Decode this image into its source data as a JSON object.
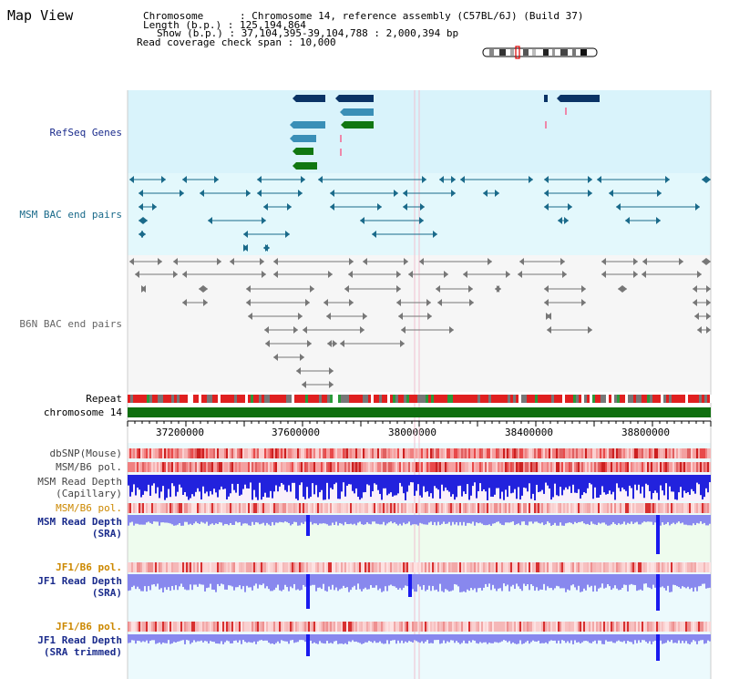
{
  "app": {
    "title": "Map View"
  },
  "info": {
    "chromosome_label": "Chromosome",
    "chromosome_value": "Chromosome 14, reference assembly (C57BL/6J) (Build 37)",
    "length_label": "Length (b.p.)",
    "length_value": "125,194,864",
    "show_label": "Show (b.p.)",
    "show_value": "37,104,395-39,104,788 : 2,000,394 bp",
    "read_span_label": "Read coverage check span",
    "read_span_value": "10,000",
    "sep": " : "
  },
  "tracks": {
    "refseq": "RefSeq Genes",
    "msm_bac": "MSM BAC end pairs",
    "b6n_bac": "B6N BAC end pairs",
    "repeat": "Repeat",
    "chromosome": "chromosome 14",
    "dbsnp": "dbSNP(Mouse)",
    "msm_b6_pol": "MSM/B6 pol.",
    "msm_read_cap_1": "MSM Read Depth",
    "msm_read_cap_2": "(Capillary)",
    "msm_b6_pol2": "MSM/B6 pol.",
    "msm_read_sra_1": "MSM Read Depth",
    "msm_read_sra_2": "(SRA)",
    "jf1_b6_pol": "JF1/B6 pol.",
    "jf1_read_sra_1": "JF1 Read Depth",
    "jf1_read_sra_2": "(SRA)",
    "jf1_b6_pol2": "JF1/B6 pol.",
    "jf1_read_trim_1": "JF1 Read Depth",
    "jf1_read_trim_2": "(SRA trimmed)"
  },
  "axis": {
    "ticks": [
      "37200000",
      "37600000",
      "38000000",
      "38400000",
      "38800000"
    ],
    "start": 37104395,
    "end": 39104788
  },
  "colors": {
    "refseq_bg": "#d9f3fb",
    "msm_bac_bg": "#e3f8fc",
    "b6n_bg": "#f6f6f6",
    "gene_dark": "#0a3366",
    "gene_mid": "#3a8fb7",
    "gene_green": "#117711",
    "msm_bac_line": "#1a6a8a",
    "b6n_line": "#777777",
    "chrom_bar": "#0f6f0f",
    "label_navy": "#1a2b8c",
    "label_teal": "#1a6a8a",
    "label_orange": "#cc8800",
    "depth_blue": "#1a1aee",
    "depth_light": "#8888ee"
  }
}
